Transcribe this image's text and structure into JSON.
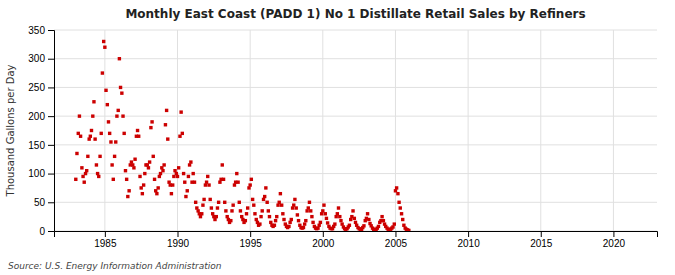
{
  "chart_data": {
    "type": "scatter",
    "title": "Monthly East Coast (PADD 1) No 1 Distillate Retail Sales by Refiners",
    "ylabel": "Thousand Gallons per Day",
    "annotations": [
      "Source: U.S. Energy Information Administration"
    ],
    "color": "#cc0000",
    "marker": "square",
    "grid": true,
    "xlim": [
      1981.5,
      2023
    ],
    "ylim": [
      0,
      350
    ],
    "xticks": [
      1985,
      1990,
      1995,
      2000,
      2005,
      2010,
      2015,
      2020
    ],
    "yticks": [
      0,
      50,
      100,
      150,
      200,
      250,
      300,
      350
    ],
    "x": [
      1983.0,
      1983.08,
      1983.17,
      1983.25,
      1983.33,
      1983.42,
      1983.5,
      1983.58,
      1983.67,
      1983.75,
      1983.83,
      1983.92,
      1984.0,
      1984.08,
      1984.17,
      1984.25,
      1984.33,
      1984.42,
      1984.5,
      1984.58,
      1984.67,
      1984.75,
      1984.83,
      1984.92,
      1985.0,
      1985.08,
      1985.17,
      1985.25,
      1985.33,
      1985.42,
      1985.5,
      1985.58,
      1985.67,
      1985.75,
      1985.83,
      1985.92,
      1986.0,
      1986.08,
      1986.17,
      1986.25,
      1986.33,
      1986.42,
      1986.5,
      1986.58,
      1986.67,
      1986.75,
      1986.83,
      1986.92,
      1987.0,
      1987.08,
      1987.17,
      1987.25,
      1987.33,
      1987.42,
      1987.5,
      1987.58,
      1987.67,
      1987.75,
      1987.83,
      1987.92,
      1988.0,
      1988.08,
      1988.17,
      1988.25,
      1988.33,
      1988.42,
      1988.5,
      1988.58,
      1988.67,
      1988.75,
      1988.83,
      1988.92,
      1989.0,
      1989.08,
      1989.17,
      1989.25,
      1989.33,
      1989.42,
      1989.5,
      1989.58,
      1989.67,
      1989.75,
      1989.83,
      1989.92,
      1990.0,
      1990.08,
      1990.17,
      1990.25,
      1990.33,
      1990.42,
      1990.5,
      1990.58,
      1990.67,
      1990.75,
      1990.83,
      1990.92,
      1991.0,
      1991.08,
      1991.17,
      1991.25,
      1991.33,
      1991.42,
      1991.5,
      1991.58,
      1991.67,
      1991.75,
      1991.83,
      1991.92,
      1992.0,
      1992.08,
      1992.17,
      1992.25,
      1992.33,
      1992.42,
      1992.5,
      1992.58,
      1992.67,
      1992.75,
      1992.83,
      1992.92,
      1993.0,
      1993.08,
      1993.17,
      1993.25,
      1993.33,
      1993.42,
      1993.5,
      1993.58,
      1993.67,
      1993.75,
      1993.83,
      1993.92,
      1994.0,
      1994.08,
      1994.17,
      1994.25,
      1994.33,
      1994.42,
      1994.5,
      1994.58,
      1994.67,
      1994.75,
      1994.83,
      1994.92,
      1995.0,
      1995.08,
      1995.17,
      1995.25,
      1995.33,
      1995.42,
      1995.5,
      1995.58,
      1995.67,
      1995.75,
      1995.83,
      1995.92,
      1996.0,
      1996.08,
      1996.17,
      1996.25,
      1996.33,
      1996.42,
      1996.5,
      1996.58,
      1996.67,
      1996.75,
      1996.83,
      1996.92,
      1997.0,
      1997.08,
      1997.17,
      1997.25,
      1997.33,
      1997.42,
      1997.5,
      1997.58,
      1997.67,
      1997.75,
      1997.83,
      1997.92,
      1998.0,
      1998.08,
      1998.17,
      1998.25,
      1998.33,
      1998.42,
      1998.5,
      1998.58,
      1998.67,
      1998.75,
      1998.83,
      1998.92,
      1999.0,
      1999.08,
      1999.17,
      1999.25,
      1999.33,
      1999.42,
      1999.5,
      1999.58,
      1999.67,
      1999.75,
      1999.83,
      1999.92,
      2000.0,
      2000.08,
      2000.17,
      2000.25,
      2000.33,
      2000.42,
      2000.5,
      2000.58,
      2000.67,
      2000.75,
      2000.83,
      2000.92,
      2001.0,
      2001.08,
      2001.17,
      2001.25,
      2001.33,
      2001.42,
      2001.5,
      2001.58,
      2001.67,
      2001.75,
      2001.83,
      2001.92,
      2002.0,
      2002.08,
      2002.17,
      2002.25,
      2002.33,
      2002.42,
      2002.5,
      2002.58,
      2002.67,
      2002.75,
      2002.83,
      2002.92,
      2003.0,
      2003.08,
      2003.17,
      2003.25,
      2003.33,
      2003.42,
      2003.5,
      2003.58,
      2003.67,
      2003.75,
      2003.83,
      2003.92,
      2004.0,
      2004.08,
      2004.17,
      2004.25,
      2004.33,
      2004.42,
      2004.5,
      2004.58,
      2004.67,
      2004.75,
      2004.83,
      2004.92,
      2005.0,
      2005.08,
      2005.17,
      2005.25,
      2005.33,
      2005.42,
      2005.5,
      2005.58,
      2005.67,
      2005.75,
      2005.83,
      2005.92
    ],
    "values": [
      90,
      135,
      170,
      200,
      165,
      110,
      95,
      85,
      100,
      105,
      130,
      160,
      165,
      175,
      200,
      225,
      160,
      115,
      100,
      95,
      130,
      170,
      275,
      330,
      320,
      245,
      220,
      190,
      170,
      155,
      115,
      90,
      130,
      155,
      200,
      210,
      300,
      250,
      240,
      200,
      170,
      105,
      90,
      60,
      70,
      115,
      120,
      115,
      110,
      125,
      165,
      175,
      165,
      95,
      75,
      65,
      80,
      100,
      115,
      115,
      110,
      120,
      180,
      190,
      130,
      90,
      70,
      65,
      75,
      95,
      100,
      110,
      105,
      115,
      185,
      210,
      160,
      85,
      80,
      65,
      80,
      95,
      105,
      100,
      95,
      110,
      165,
      207,
      170,
      100,
      85,
      60,
      70,
      95,
      115,
      120,
      85,
      100,
      85,
      50,
      40,
      35,
      30,
      25,
      30,
      45,
      55,
      80,
      85,
      95,
      80,
      55,
      40,
      30,
      25,
      20,
      25,
      40,
      50,
      85,
      90,
      115,
      90,
      50,
      35,
      25,
      20,
      15,
      18,
      35,
      45,
      80,
      85,
      100,
      85,
      50,
      35,
      25,
      20,
      15,
      18,
      30,
      40,
      75,
      80,
      90,
      55,
      45,
      30,
      20,
      15,
      10,
      12,
      25,
      35,
      55,
      60,
      75,
      50,
      35,
      25,
      15,
      10,
      8,
      10,
      18,
      25,
      45,
      50,
      65,
      45,
      30,
      20,
      12,
      8,
      6,
      8,
      15,
      20,
      40,
      45,
      55,
      40,
      28,
      18,
      10,
      6,
      5,
      6,
      12,
      18,
      35,
      40,
      50,
      35,
      25,
      15,
      8,
      5,
      4,
      5,
      10,
      15,
      30,
      35,
      45,
      30,
      22,
      14,
      8,
      5,
      4,
      4,
      8,
      12,
      25,
      30,
      40,
      25,
      18,
      12,
      7,
      4,
      3,
      4,
      7,
      10,
      20,
      25,
      35,
      22,
      15,
      10,
      6,
      4,
      3,
      3,
      6,
      9,
      18,
      22,
      30,
      20,
      13,
      9,
      5,
      3,
      2,
      3,
      5,
      8,
      15,
      18,
      25,
      18,
      12,
      8,
      5,
      3,
      2,
      3,
      5,
      7,
      12,
      70,
      75,
      65,
      50,
      40,
      30,
      20,
      10,
      5,
      3,
      2,
      1
    ]
  }
}
